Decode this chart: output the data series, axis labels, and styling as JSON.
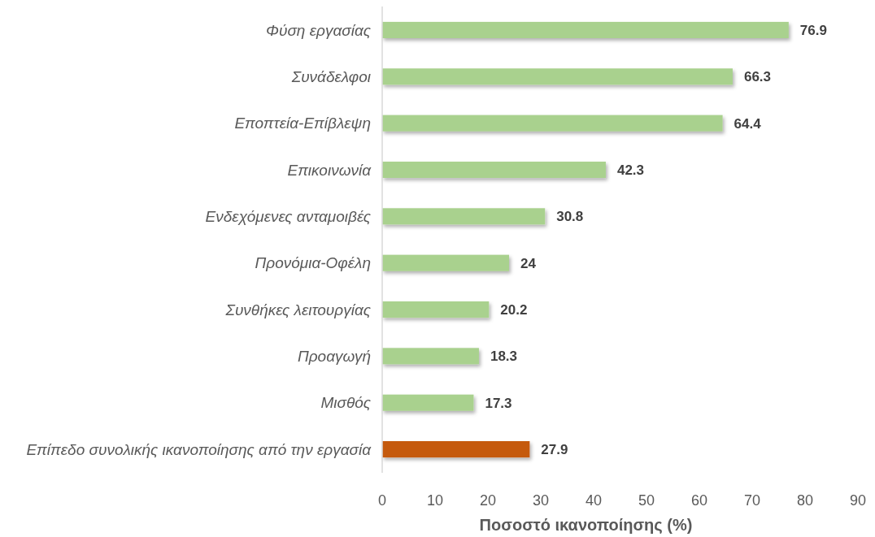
{
  "chart_data": {
    "type": "bar",
    "orientation": "horizontal",
    "xlabel": "Ποσοστό ικανοποίησης (%)",
    "categories": [
      "Φύση εργασίας",
      "Συνάδελφοι",
      "Εποπτεία-Επίβλεψη",
      "Επικοινωνία",
      "Ενδεχόμενες ανταμοιβές",
      "Προνόμια-Οφέλη",
      "Συνθήκες λειτουργίας",
      "Προαγωγή",
      "Μισθός",
      "Επίπεδο συνολικής ικανοποίησης από την εργασία"
    ],
    "values": [
      76.9,
      66.3,
      64.4,
      42.3,
      30.8,
      24,
      20.2,
      18.3,
      17.3,
      27.9
    ],
    "colors": [
      "#a9d18e",
      "#a9d18e",
      "#a9d18e",
      "#a9d18e",
      "#a9d18e",
      "#a9d18e",
      "#a9d18e",
      "#a9d18e",
      "#a9d18e",
      "#c55a11"
    ],
    "data_labels": true,
    "xlim": [
      0,
      90
    ],
    "xticks": [
      0,
      10,
      20,
      30,
      40,
      50,
      60,
      70,
      80,
      90
    ]
  }
}
